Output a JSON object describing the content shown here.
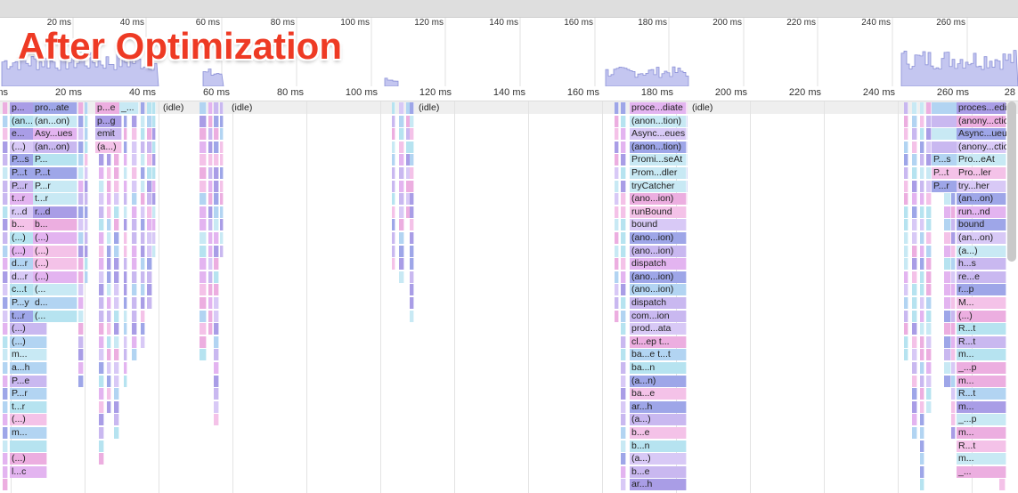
{
  "overlay_title": "After Optimization",
  "overview": {
    "ticks": [
      {
        "label": "20 ms",
        "x": 80
      },
      {
        "label": "40 ms",
        "x": 162
      },
      {
        "label": "60 ms",
        "x": 247
      },
      {
        "label": "80 ms",
        "x": 331
      },
      {
        "label": "100 ms",
        "x": 415
      },
      {
        "label": "120 ms",
        "x": 498
      },
      {
        "label": "140 ms",
        "x": 582
      },
      {
        "label": "160 ms",
        "x": 666
      },
      {
        "label": "180 ms",
        "x": 749
      },
      {
        "label": "200 ms",
        "x": 833
      },
      {
        "label": "220 ms",
        "x": 916
      },
      {
        "label": "240 ms",
        "x": 1000
      },
      {
        "label": "260 ms",
        "x": 1084
      }
    ]
  },
  "ruler": {
    "ticks": [
      {
        "label": "ms",
        "x": 9
      },
      {
        "label": "20 ms",
        "x": 92
      },
      {
        "label": "40 ms",
        "x": 175
      },
      {
        "label": "60 ms",
        "x": 258
      },
      {
        "label": "80 ms",
        "x": 341
      },
      {
        "label": "100 ms",
        "x": 424
      },
      {
        "label": "120 ms",
        "x": 507
      },
      {
        "label": "140 ms",
        "x": 590
      },
      {
        "label": "160 ms",
        "x": 673
      },
      {
        "label": "180 ms",
        "x": 756
      },
      {
        "label": "200 ms",
        "x": 839
      },
      {
        "label": "220 ms",
        "x": 922
      },
      {
        "label": "240 ms",
        "x": 1005
      },
      {
        "label": "260 ms",
        "x": 1088
      },
      {
        "label": "28",
        "x": 1140
      }
    ]
  },
  "flame": {
    "columns": [
      {
        "x": 11,
        "w": 42,
        "labels": [
          "p...",
          "(an...on)",
          "e...",
          "(...)",
          "P...s",
          "P...t",
          "P...r",
          "t...r",
          "r...d",
          "b...",
          "(...)",
          "(...)",
          "d...r",
          "d...r",
          "c...t",
          "P...y",
          "t...r",
          "(...)",
          "(...)",
          "m...",
          "a...h",
          "P...e",
          "P...r",
          "t...r",
          "(...)",
          "m...",
          "",
          "(...)",
          "l...c"
        ]
      },
      {
        "x": 37,
        "w": 50,
        "labels": [
          "pro...ate",
          "(an...on)",
          "Asy...ues",
          "(an...on)",
          "P...",
          "P...t",
          "P...r",
          "t...r",
          "r...d",
          "b...",
          "(...)",
          "(...)",
          "(...)",
          "(...)",
          "(...",
          "d...",
          "(..."
        ]
      },
      {
        "x": 107,
        "w": 30,
        "labels": [
          "p...e",
          "p...g",
          "emit",
          "(a...)"
        ]
      },
      {
        "x": 134,
        "w": 22,
        "labels": [
          "_..."
        ]
      },
      {
        "x": 707,
        "w": 64,
        "labels": [
          "proce...diate",
          "(anon...tion)",
          "Async...eues",
          "(anon...tion)",
          "Promi...seAt",
          "Prom...dler",
          "tryCatcher",
          "(ano...ion)",
          "runBound",
          "bound",
          "(ano...ion)",
          "(ano...ion)",
          "dispatch",
          "(ano...ion)",
          "(ano...ion)",
          "dispatch",
          "com...ion",
          "prod...ata",
          "cl...ep t...",
          "ba...e t...t",
          "ba...n",
          "(a...n)",
          "ba...e",
          "ar...h",
          "(a...)",
          "b...e",
          "b...n",
          "(a...)",
          "b...e",
          "ar...h"
        ]
      },
      {
        "x": 1046,
        "w": 40,
        "labels": [
          "",
          "",
          "",
          "",
          "P...s",
          "P...t",
          "P...r"
        ]
      },
      {
        "x": 1074,
        "w": 56,
        "labels": [
          "proces...ediate",
          "(anony...ction)",
          "Async...ueues",
          "(anony...ction)",
          "Pro...eAt",
          "Pro...ler",
          "try...her",
          "(an...on)",
          "run...nd",
          "bound",
          "(an...on)",
          "(a...)",
          "h...s",
          "re...e",
          "r...p",
          "M...",
          "(...)",
          "R...t",
          "R...t",
          "m...",
          "_...p",
          "m...",
          "R...t",
          "m...",
          "_...p",
          "m...",
          "R...t",
          "m...",
          "_..."
        ]
      }
    ],
    "idle_labels": [
      {
        "label": "(idle)",
        "x": 181
      },
      {
        "label": "(idle)",
        "x": 258
      },
      {
        "label": "(idle)",
        "x": 468
      },
      {
        "label": "(idle)",
        "x": 775
      }
    ]
  },
  "colors": {
    "palette": [
      "#c9b8f0",
      "#b6e3f0",
      "#f4c2e8",
      "#a99de6",
      "#e3b4f0",
      "#d8c9f6",
      "#b2d4f2",
      "#ecaee0",
      "#c8e9f4",
      "#9ea6e8"
    ]
  }
}
